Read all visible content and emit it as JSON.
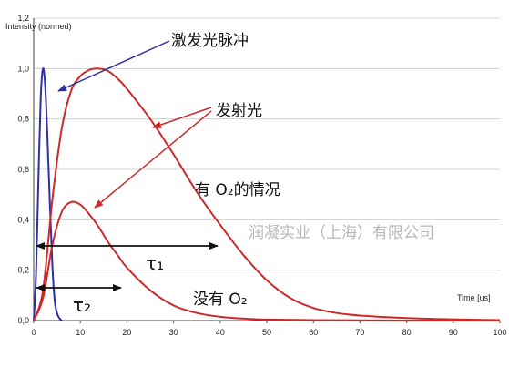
{
  "chart_data": {
    "type": "line",
    "ylabel": "Intensity (normed)",
    "xlabel": "Time [us]",
    "xlim": [
      0,
      100
    ],
    "ylim": [
      0,
      1.2
    ],
    "x_ticks": [
      "0",
      "10",
      "20",
      "30",
      "40",
      "50",
      "60",
      "70",
      "80",
      "90",
      "100"
    ],
    "y_ticks": [
      "0,0",
      "0,2",
      "0,4",
      "0,6",
      "0,8",
      "1,0",
      "1,2"
    ],
    "grid": "horizontal",
    "series": [
      {
        "color": "#2b2fa8",
        "x": [
          0,
          0.5,
          1,
          1.5,
          2,
          2.5,
          3,
          3.5,
          4,
          4.5,
          5,
          5.5,
          6
        ],
        "y": [
          0.0,
          0.18,
          0.55,
          0.88,
          1.0,
          0.92,
          0.7,
          0.45,
          0.22,
          0.08,
          0.03,
          0.01,
          0.0
        ]
      },
      {
        "color": "#cc2a2a",
        "x": [
          0,
          2,
          4,
          6,
          8,
          10,
          12,
          14,
          16,
          18,
          20,
          25,
          30,
          35,
          40,
          45,
          50,
          55,
          60,
          65,
          70,
          80,
          90,
          100
        ],
        "y": [
          0.0,
          0.12,
          0.48,
          0.76,
          0.91,
          0.97,
          0.995,
          1.0,
          0.99,
          0.96,
          0.92,
          0.8,
          0.66,
          0.51,
          0.38,
          0.26,
          0.16,
          0.09,
          0.05,
          0.03,
          0.02,
          0.01,
          0.005,
          0.002
        ]
      },
      {
        "color": "#cc2a2a",
        "x": [
          0,
          2,
          4,
          6,
          8,
          10,
          12,
          14,
          16,
          18,
          20,
          25,
          30,
          35,
          40,
          45,
          50,
          60,
          70,
          80,
          90,
          100
        ],
        "y": [
          0.0,
          0.09,
          0.3,
          0.43,
          0.47,
          0.46,
          0.42,
          0.37,
          0.31,
          0.26,
          0.21,
          0.12,
          0.06,
          0.03,
          0.015,
          0.008,
          0.004,
          0.002,
          0.001,
          0.0,
          0.0,
          0.0
        ]
      }
    ],
    "annotations": {
      "excitation": "激发光脉冲",
      "emission": "发射光",
      "with_o2": "有 O₂的情况",
      "without_o2": "没有 O₂",
      "tau1": "τ₁",
      "tau2": "τ₂"
    },
    "watermark": "润凝实业（上海）有限公司"
  }
}
